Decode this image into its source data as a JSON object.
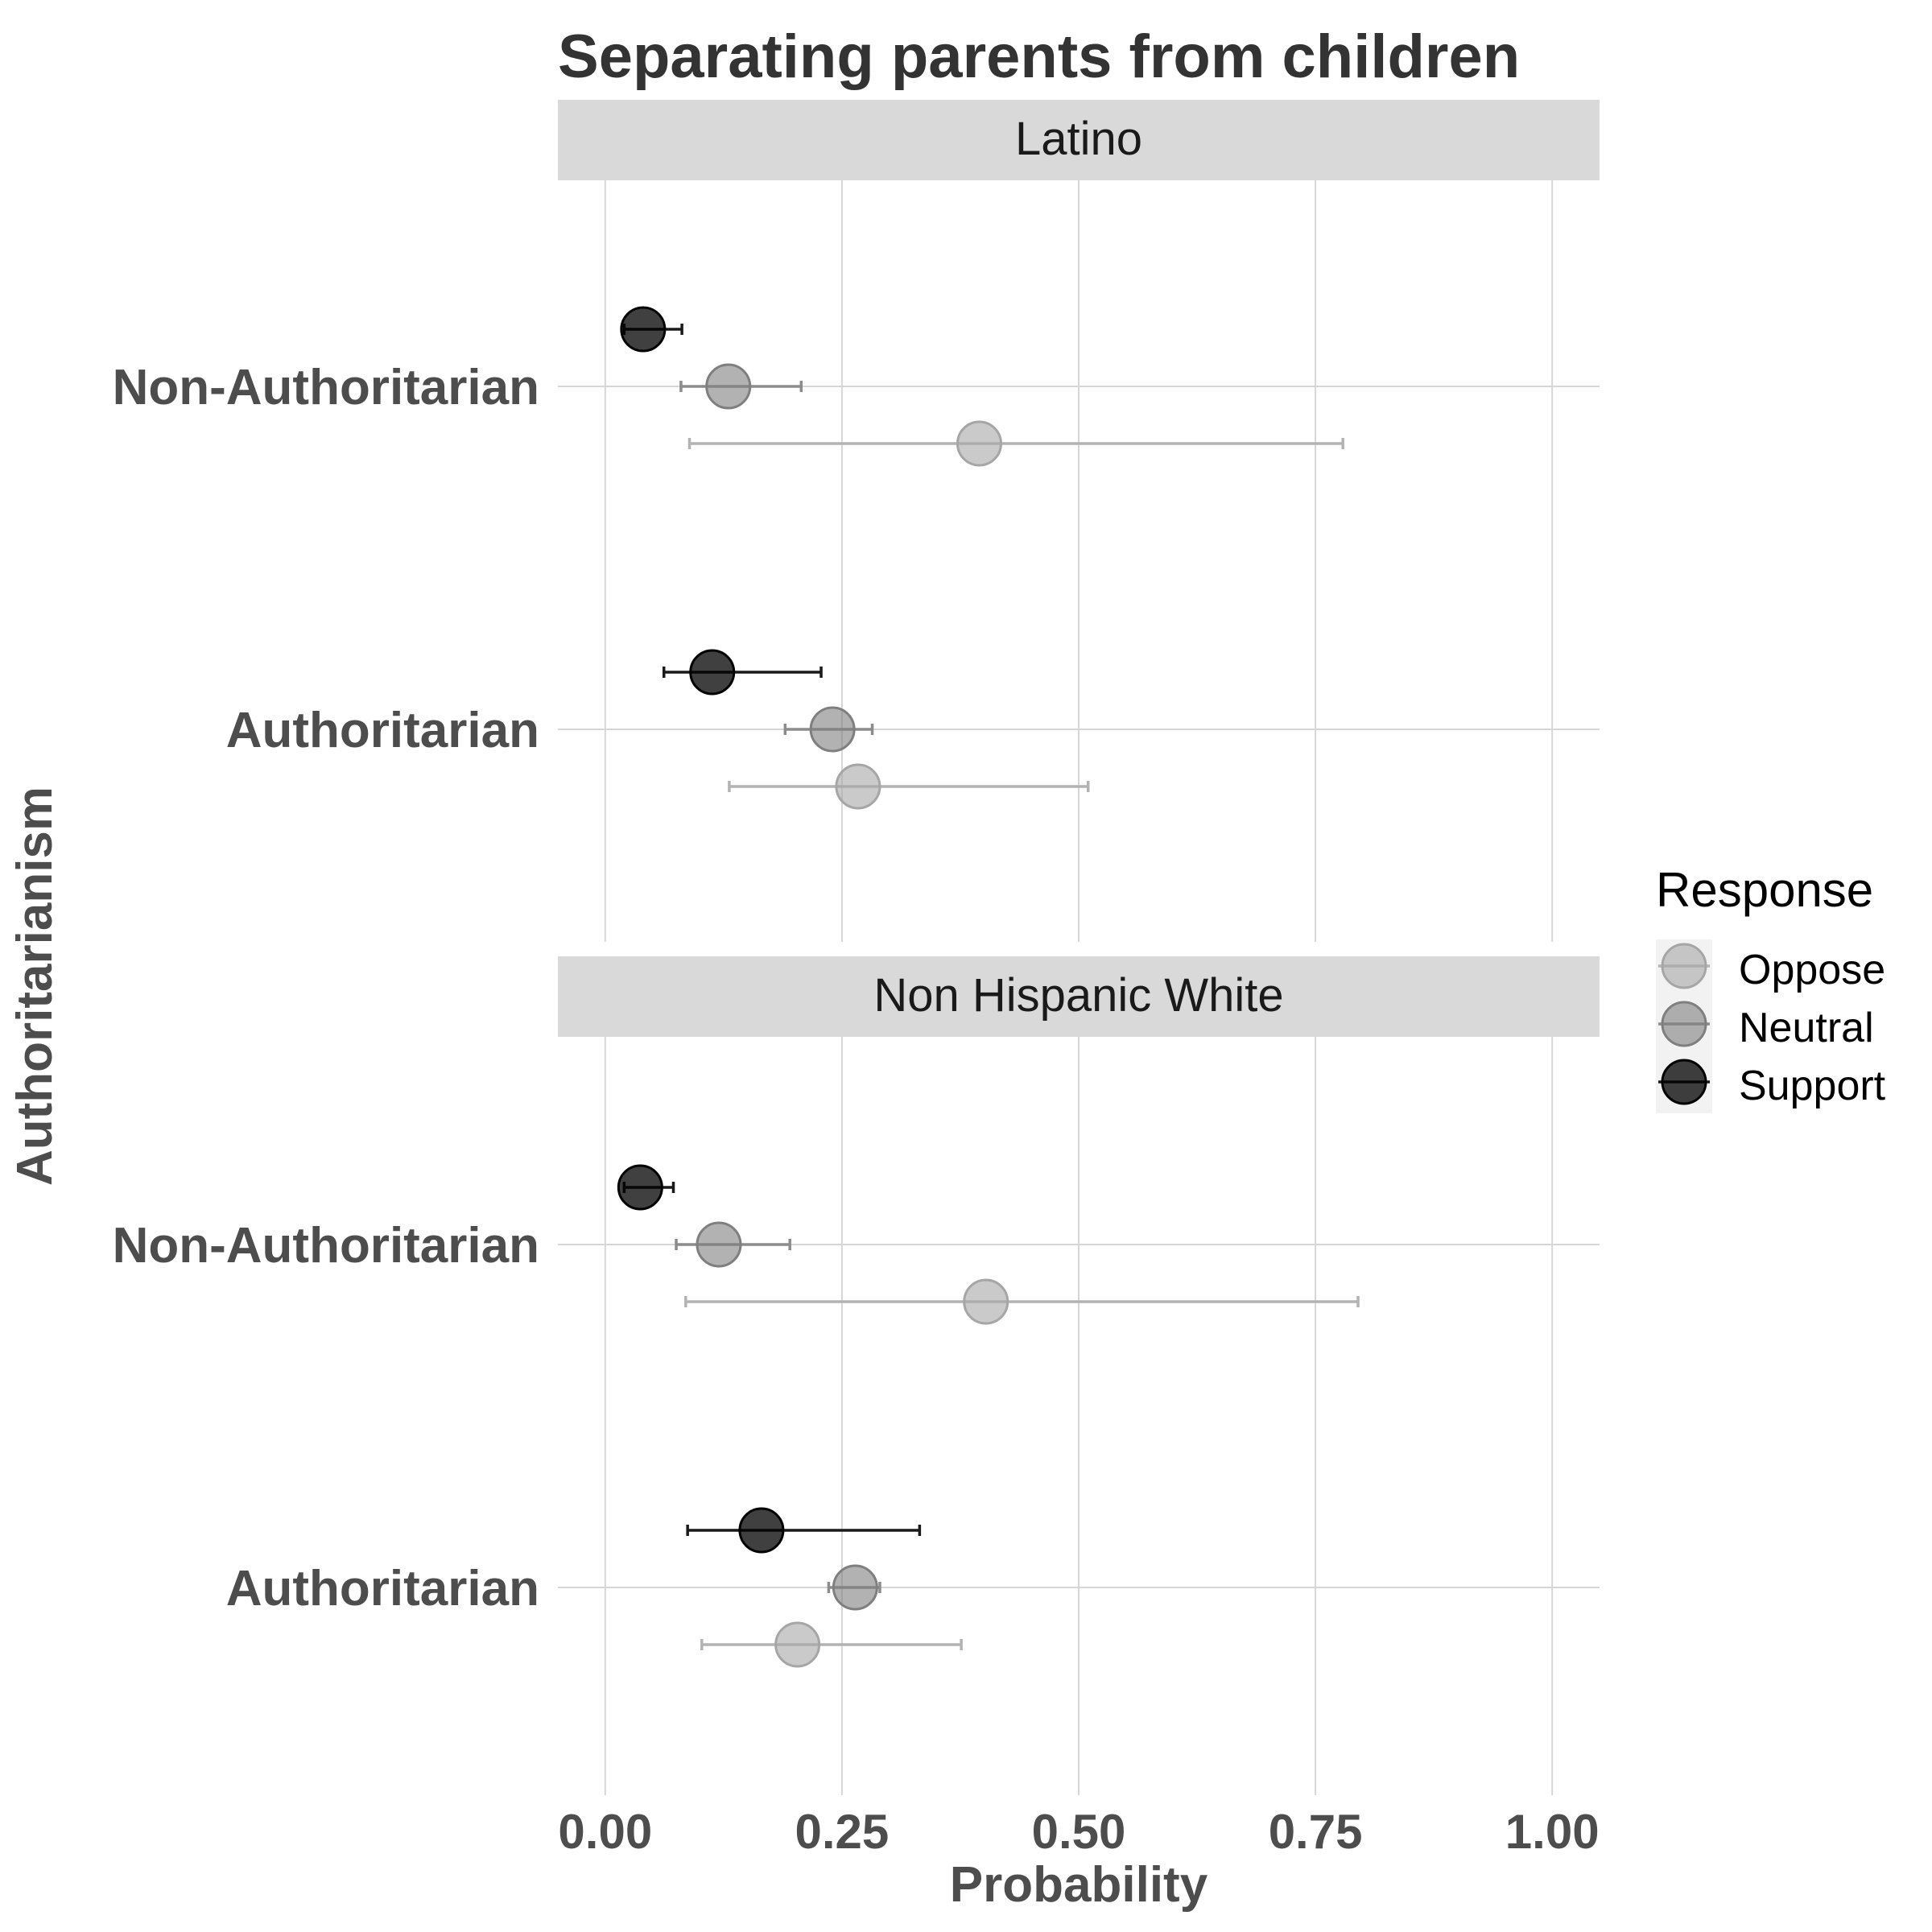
{
  "chart_data": {
    "type": "scatter",
    "title": "Separating parents from children",
    "xlabel": "Probability",
    "ylabel": "Authoritarianism",
    "xlim": [
      -0.05,
      1.05
    ],
    "x_ticks": [
      "0.00",
      "0.25",
      "0.50",
      "0.75",
      "1.00"
    ],
    "grid": true,
    "legend": {
      "title": "Response",
      "position": "right",
      "entries": [
        {
          "name": "Oppose",
          "color": "#a6a6a6"
        },
        {
          "name": "Neutral",
          "color": "#7f7f7f"
        },
        {
          "name": "Support",
          "color": "#000000"
        }
      ]
    },
    "facets": [
      {
        "name": "Latino",
        "categories": [
          "Non-Authoritarian",
          "Authoritarian"
        ],
        "series": [
          {
            "name": "Support",
            "estimates": [
              0.04,
              0.113
            ],
            "lower": [
              0.02,
              0.062
            ],
            "upper": [
              0.081,
              0.228
            ]
          },
          {
            "name": "Neutral",
            "estimates": [
              0.13,
              0.24
            ],
            "lower": [
              0.08,
              0.19
            ],
            "upper": [
              0.207,
              0.282
            ]
          },
          {
            "name": "Oppose",
            "estimates": [
              0.395,
              0.267
            ],
            "lower": [
              0.089,
              0.131
            ],
            "upper": [
              0.779,
              0.51
            ]
          }
        ]
      },
      {
        "name": "Non Hispanic White",
        "categories": [
          "Non-Authoritarian",
          "Authoritarian"
        ],
        "series": [
          {
            "name": "Support",
            "estimates": [
              0.037,
              0.165
            ],
            "lower": [
              0.02,
              0.087
            ],
            "upper": [
              0.072,
              0.332
            ]
          },
          {
            "name": "Neutral",
            "estimates": [
              0.12,
              0.264
            ],
            "lower": [
              0.075,
              0.236
            ],
            "upper": [
              0.195,
              0.29
            ]
          },
          {
            "name": "Oppose",
            "estimates": [
              0.402,
              0.203
            ],
            "lower": [
              0.085,
              0.102
            ],
            "upper": [
              0.795,
              0.376
            ]
          }
        ]
      }
    ]
  }
}
